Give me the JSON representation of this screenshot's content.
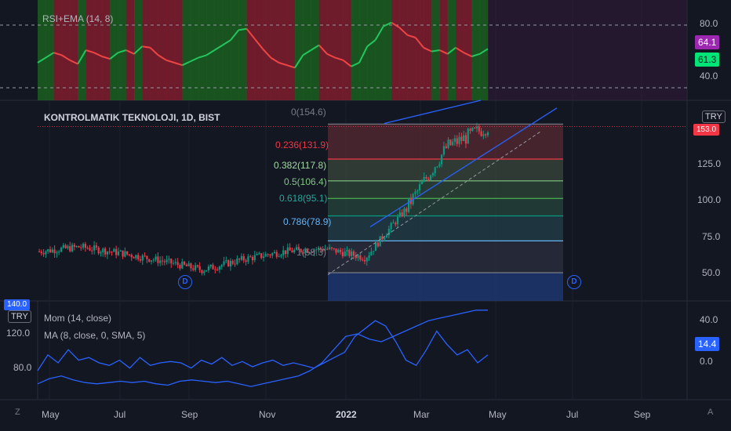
{
  "rsi_pane": {
    "title": "RSI+EMA (14, 8)",
    "axis_ticks": [
      "80.0",
      "40.0"
    ],
    "badge_rsi": "64.1",
    "badge_ema": "61.3",
    "colors": {
      "up": "#22b14c",
      "down": "#e53935",
      "badge_rsi": "#9c27b0",
      "badge_ema": "#00e676"
    }
  },
  "price_pane": {
    "title": "KONTROLMATIK TEKNOLOJI, 1D, BIST",
    "currency_button": "TRY",
    "axis_ticks": [
      "125.0",
      "100.0",
      "75.0",
      "50.0"
    ],
    "last_price_badge": "153.0",
    "fib_levels": [
      {
        "label": "0(154.6)",
        "value": 154.6,
        "color": "#787b86"
      },
      {
        "label": "0.236(131.9)",
        "value": 131.9,
        "color": "#f23645"
      },
      {
        "label": "0.382(117.8)",
        "value": 117.8,
        "color": "#81c784"
      },
      {
        "label": "0.5(106.4)",
        "value": 106.4,
        "color": "#4caf50"
      },
      {
        "label": "0.618(95.1)",
        "value": 95.1,
        "color": "#089981"
      },
      {
        "label": "0.786(78.9)",
        "value": 78.9,
        "color": "#64b5f6"
      },
      {
        "label": "1(58.3)",
        "value": 58.3,
        "color": "#787b86"
      }
    ],
    "dividend_marker": "D",
    "colors": {
      "up": "#089981",
      "down": "#f23645",
      "channel": "#2962ff"
    }
  },
  "mom_pane": {
    "title_mom": "Mom (14, close)",
    "title_ma": "MA (8, close, 0, SMA, 5)",
    "currency_button": "TRY",
    "right_ticks": [
      "40.0",
      "0.0"
    ],
    "left_ticks": [
      "120.0",
      "80.0"
    ],
    "badge": "14.4",
    "left_badge": "140.0",
    "colors": {
      "line": "#2962ff"
    }
  },
  "time_axis": {
    "labels": [
      "May",
      "Jul",
      "Sep",
      "Nov",
      "2022",
      "Mar",
      "May",
      "Jul",
      "Sep"
    ],
    "corner_left": "Z",
    "corner_right": "A"
  },
  "chart_data": [
    {
      "type": "line",
      "title": "RSI+EMA (14, 8)",
      "series": [
        {
          "name": "RSI+EMA (14, 8)",
          "values": [
            50,
            54,
            58,
            56,
            52,
            49,
            60,
            58,
            55,
            53,
            58,
            60,
            57,
            63,
            62,
            56,
            52,
            50,
            48,
            51,
            54,
            56,
            60,
            64,
            68,
            76,
            77,
            69,
            61,
            54,
            50,
            48,
            46,
            56,
            60,
            64,
            57,
            54,
            52,
            47,
            50,
            63,
            68,
            79,
            82,
            78,
            72,
            70,
            62,
            59,
            60,
            57,
            62,
            58,
            55,
            57,
            61
          ]
        }
      ],
      "ylim": [
        20,
        100
      ]
    },
    {
      "type": "candlestick",
      "title": "KONTROLMATIK TEKNOLOJI, 1D, BIST",
      "x": [
        "2021-05",
        "2021-06",
        "2021-07",
        "2021-08",
        "2021-09",
        "2021-10",
        "2021-11",
        "2021-12",
        "2022-01",
        "2022-02",
        "2022-03",
        "2022-04"
      ],
      "series": [
        {
          "name": "close",
          "values": [
            72,
            75,
            71,
            66,
            60,
            67,
            72,
            74,
            68,
            100,
            140,
            153
          ]
        }
      ],
      "ylim": [
        40,
        170
      ]
    },
    {
      "type": "line",
      "title": "Mom (14, close)",
      "series": [
        {
          "name": "Mom (14, close)",
          "values": [
            2,
            14,
            8,
            18,
            10,
            12,
            8,
            6,
            10,
            4,
            12,
            6,
            8,
            9,
            8,
            4,
            10,
            7,
            12,
            6,
            9,
            5,
            8,
            10,
            6,
            8,
            6,
            4,
            8,
            12,
            16,
            28,
            34,
            40,
            36,
            24,
            10,
            6,
            18,
            32,
            22,
            14,
            18,
            8,
            14
          ]
        },
        {
          "name": "MA (8, close, 0, SMA, 5)",
          "values": [
            -8,
            -4,
            -2,
            -5,
            -7,
            -8,
            -7,
            -6,
            -7,
            -6,
            -8,
            -9,
            -6,
            -5,
            -6,
            -7,
            -6,
            -8,
            -10,
            -8,
            -6,
            -4,
            -2,
            2,
            8,
            18,
            28,
            30,
            26,
            24,
            28,
            32,
            36,
            40,
            42,
            44,
            46,
            48,
            48
          ]
        }
      ],
      "ylim": [
        -20,
        55
      ]
    }
  ]
}
